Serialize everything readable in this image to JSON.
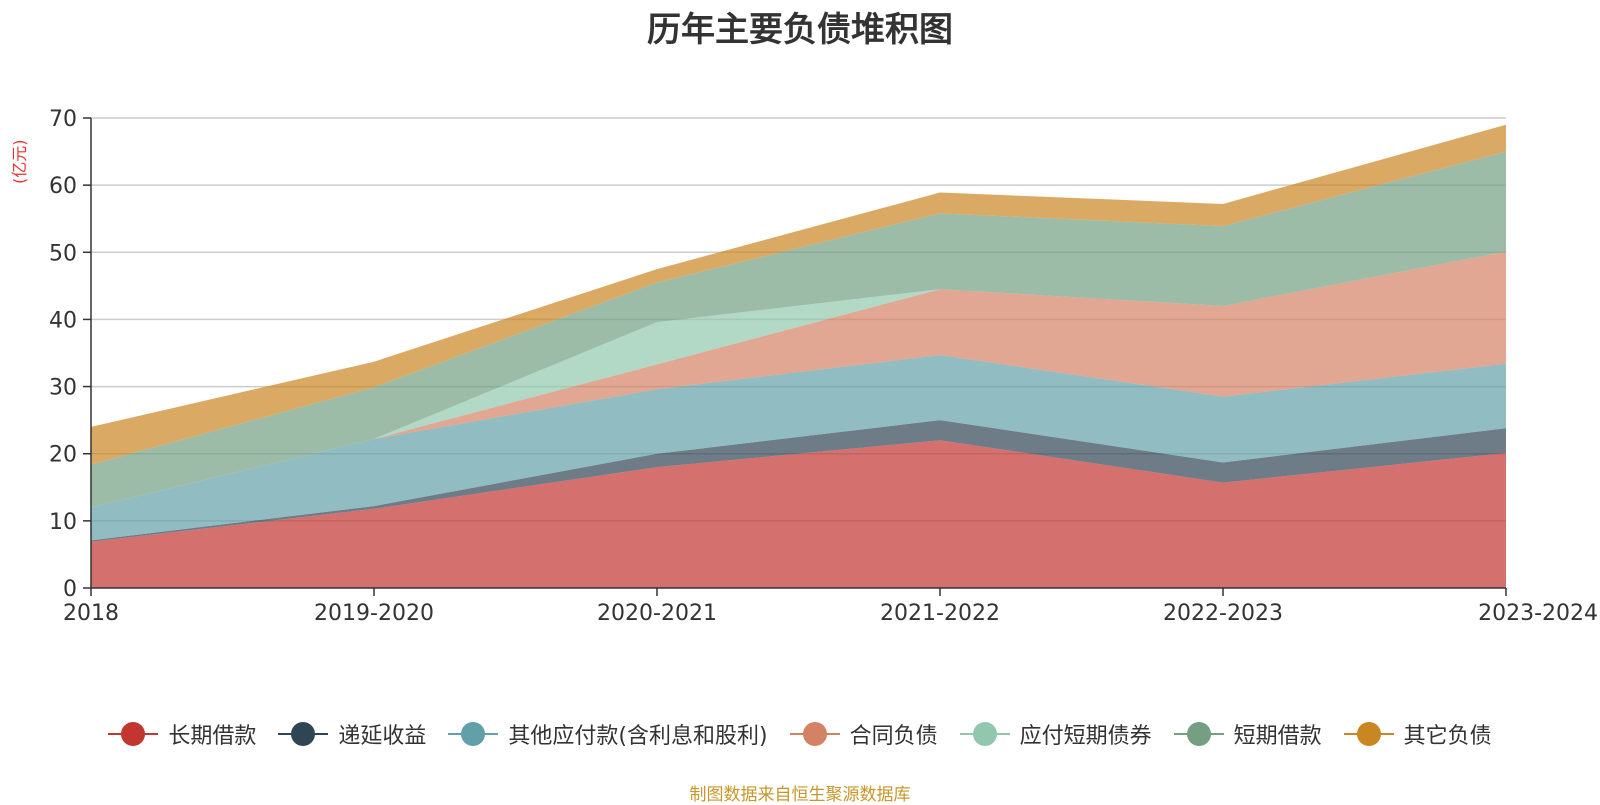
{
  "title": "历年主要负债堆积图",
  "unit_label": "(亿元)",
  "source_note": "制图数据来自恒生聚源数据库",
  "chart_data": {
    "type": "area",
    "stacked": true,
    "title": "历年主要负债堆积图",
    "ylabel": "(亿元)",
    "ylim": [
      0,
      70
    ],
    "yticks": [
      0,
      10,
      20,
      30,
      40,
      50,
      60,
      70
    ],
    "grid": true,
    "legend_position": "bottom",
    "categories": [
      "2018",
      "2019-2020",
      "2020-2021",
      "2021-2022",
      "2022-2023",
      "2023-2024"
    ],
    "series": [
      {
        "name": "长期借款",
        "color": "#c23531",
        "values": [
          6.9,
          11.8,
          18.0,
          22.0,
          15.7,
          20.1
        ]
      },
      {
        "name": "递延收益",
        "color": "#2f4554",
        "values": [
          0.2,
          0.4,
          2.0,
          3.0,
          3.0,
          3.7
        ]
      },
      {
        "name": "其他应付款(含利息和股利)",
        "color": "#61a0a8",
        "values": [
          4.9,
          10.0,
          9.6,
          9.7,
          9.8,
          9.6
        ]
      },
      {
        "name": "合同负债",
        "color": "#d48265",
        "values": [
          0.0,
          0.0,
          3.7,
          9.8,
          13.5,
          16.7
        ]
      },
      {
        "name": "应付短期债券",
        "color": "#91c7ae",
        "values": [
          0.0,
          0.0,
          6.3,
          0.0,
          0.0,
          0.0
        ]
      },
      {
        "name": "短期借款",
        "color": "#749f83",
        "values": [
          6.4,
          7.7,
          5.9,
          11.3,
          11.9,
          14.9
        ]
      },
      {
        "name": "其它负债",
        "color": "#ca8622",
        "values": [
          5.6,
          3.8,
          2.0,
          3.1,
          3.3,
          4.0
        ]
      }
    ]
  }
}
